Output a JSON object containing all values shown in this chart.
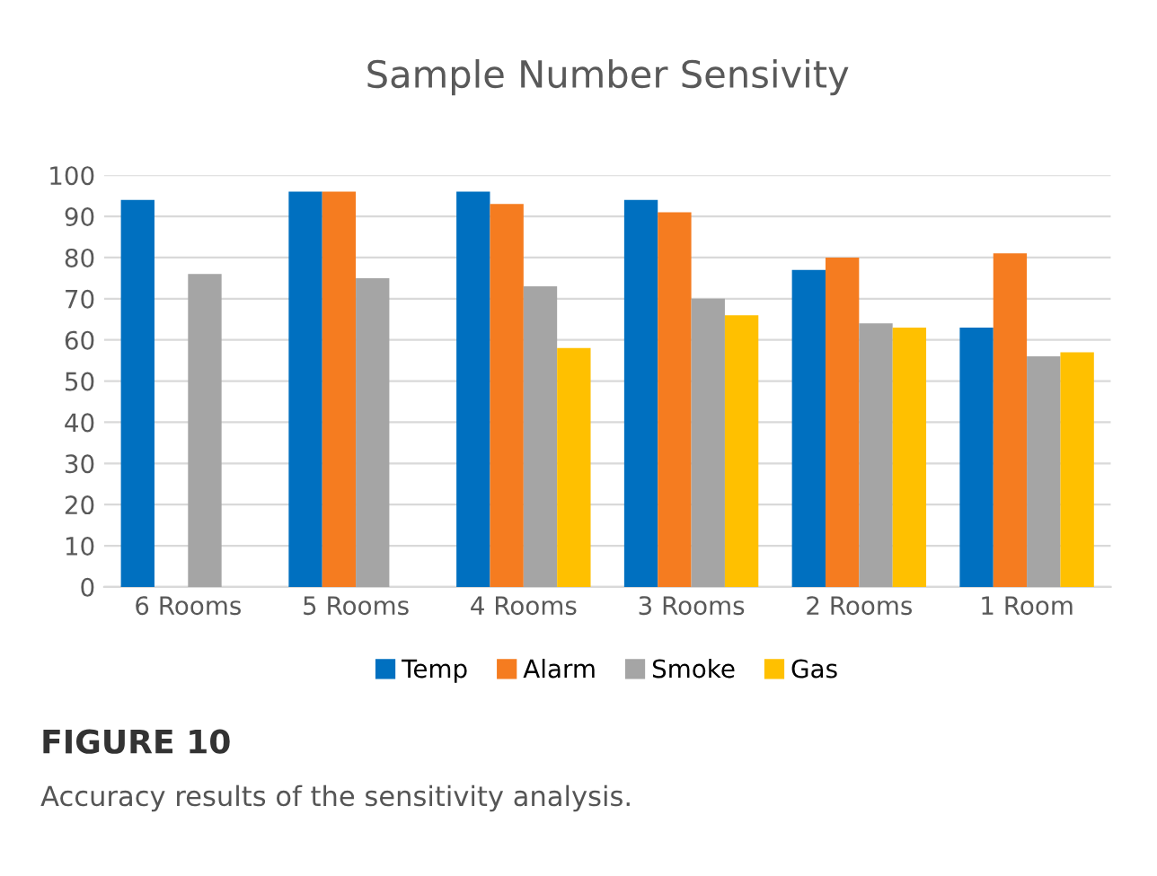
{
  "chart_data": {
    "type": "bar",
    "title": "Sample Number Sensivity",
    "categories": [
      "6 Rooms",
      "5 Rooms",
      "4 Rooms",
      "3 Rooms",
      "2 Rooms",
      "1 Room"
    ],
    "series": [
      {
        "name": "Temp",
        "color": "#0070c0",
        "values": [
          94,
          96,
          96,
          94,
          77,
          63
        ]
      },
      {
        "name": "Alarm",
        "color": "#f57c20",
        "values": [
          null,
          96,
          93,
          91,
          80,
          81
        ]
      },
      {
        "name": "Smoke",
        "color": "#a5a5a5",
        "values": [
          76,
          75,
          73,
          70,
          64,
          56
        ]
      },
      {
        "name": "Gas",
        "color": "#ffc000",
        "values": [
          null,
          null,
          58,
          66,
          63,
          57
        ]
      }
    ],
    "ylim": [
      0,
      100
    ],
    "yticks": [
      0,
      10,
      20,
      30,
      40,
      50,
      60,
      70,
      80,
      90,
      100
    ],
    "grid": "y",
    "legend": "bottom",
    "annotations": [
      "FIGURE 10",
      "Accuracy results of the sensitivity analysis."
    ]
  }
}
